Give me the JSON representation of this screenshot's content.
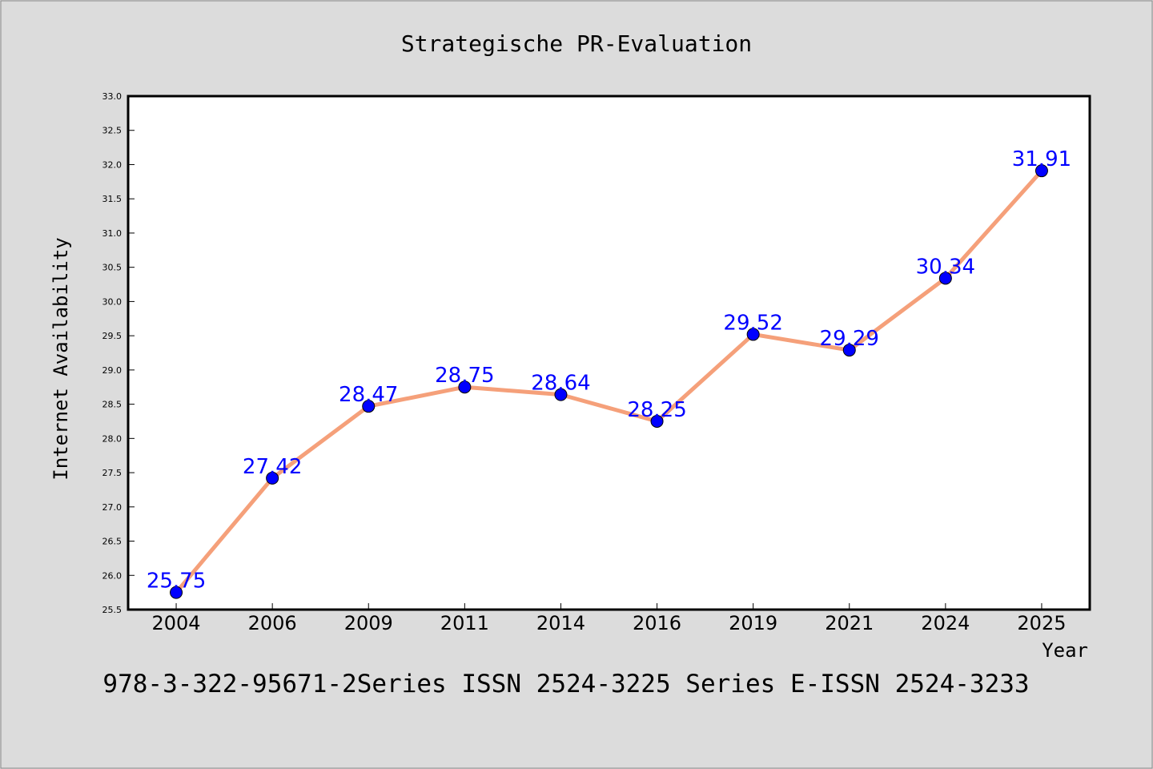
{
  "chart_data": {
    "type": "line",
    "title": "Strategische PR-Evaluation",
    "xlabel": "Year",
    "ylabel": "Internet Availability",
    "categories": [
      "2004",
      "2006",
      "2009",
      "2011",
      "2014",
      "2016",
      "2019",
      "2021",
      "2024",
      "2025"
    ],
    "series": [
      {
        "values": [
          25.75,
          27.42,
          28.47,
          28.75,
          28.64,
          28.25,
          29.52,
          29.29,
          30.34,
          31.91
        ],
        "labels": [
          "25.75",
          "27.42",
          "28.47",
          "28.75",
          "28.64",
          "28.25",
          "29.52",
          "29.29",
          "30.34",
          "31.91"
        ]
      }
    ],
    "ylim": [
      25.5,
      33.0
    ],
    "yticks": [
      "25.5",
      "26.0",
      "26.5",
      "27.0",
      "27.5",
      "28.0",
      "28.5",
      "29.0",
      "29.5",
      "30.0",
      "30.5",
      "31.0",
      "31.5",
      "32.0",
      "32.5",
      "33.0"
    ],
    "grid": false,
    "legend": "none",
    "colors": {
      "line": "#f5a07a",
      "marker": "#0000ff",
      "label": "#0000ff",
      "background": "#dcdcdc",
      "plot_background": "#ffffff"
    }
  },
  "footer": "978-3-322-95671-2Series ISSN 2524-3225 Series E-ISSN 2524-3233"
}
